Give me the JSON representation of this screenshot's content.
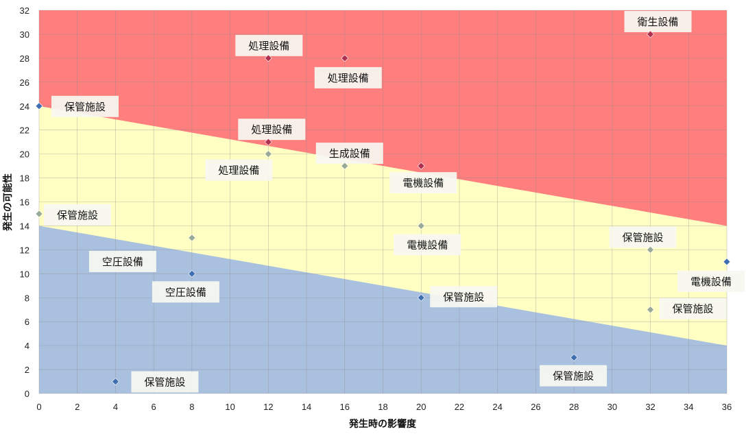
{
  "chart_data": {
    "type": "scatter",
    "title": "",
    "xlabel": "発生時の影響度",
    "ylabel": "発生の可能性",
    "xlim": [
      0,
      36
    ],
    "ylim": [
      0,
      32
    ],
    "x_ticks": [
      "0",
      "2",
      "4",
      "6",
      "8",
      "10",
      "12",
      "14",
      "16",
      "18",
      "20",
      "22",
      "24",
      "26",
      "28",
      "30",
      "32",
      "34",
      "36"
    ],
    "y_ticks": [
      "0",
      "2",
      "4",
      "6",
      "8",
      "10",
      "12",
      "14",
      "16",
      "18",
      "20",
      "22",
      "24",
      "26",
      "28",
      "30",
      "32"
    ],
    "grid": true,
    "legend": "none",
    "zones": [
      {
        "name": "high",
        "color": "#ff7f7f",
        "boundary_left_y": 24,
        "boundary_right_y": 14
      },
      {
        "name": "medium",
        "color": "#ffffc4",
        "boundary_left_y": 14,
        "boundary_right_y": 4
      },
      {
        "name": "low",
        "color": "#aac0df"
      }
    ],
    "colors": {
      "high": "#b03050",
      "medium": "#9aaa98",
      "low": "#3f6fb0"
    },
    "points": [
      {
        "x": 32,
        "y": 30,
        "label": "衛生設備",
        "level": "high"
      },
      {
        "x": 12,
        "y": 28,
        "label": "処理設備",
        "level": "high"
      },
      {
        "x": 16,
        "y": 28,
        "label": "処理設備",
        "level": "high"
      },
      {
        "x": 0,
        "y": 24,
        "label": "保管施設",
        "level": "low"
      },
      {
        "x": 12,
        "y": 21,
        "label": "処理設備",
        "level": "high"
      },
      {
        "x": 12,
        "y": 20,
        "label": "処理設備",
        "level": "medium"
      },
      {
        "x": 16,
        "y": 19,
        "label": "生成設備",
        "level": "medium"
      },
      {
        "x": 20,
        "y": 19,
        "label": "電機設備",
        "level": "high"
      },
      {
        "x": 0,
        "y": 15,
        "label": "保管施設",
        "level": "medium"
      },
      {
        "x": 8,
        "y": 13,
        "label": "空圧設備",
        "level": "medium"
      },
      {
        "x": 20,
        "y": 14,
        "label": "電機設備",
        "level": "medium"
      },
      {
        "x": 32,
        "y": 12,
        "label": "保管施設",
        "level": "medium"
      },
      {
        "x": 36,
        "y": 11,
        "label": "電機設備",
        "level": "low"
      },
      {
        "x": 8,
        "y": 10,
        "label": "空圧設備",
        "level": "low"
      },
      {
        "x": 20,
        "y": 8,
        "label": "保管施設",
        "level": "low"
      },
      {
        "x": 32,
        "y": 7,
        "label": "保管施設",
        "level": "medium"
      },
      {
        "x": 28,
        "y": 3,
        "label": "保管施設",
        "level": "low"
      },
      {
        "x": 4,
        "y": 1,
        "label": "保管施設",
        "level": "low"
      }
    ]
  }
}
